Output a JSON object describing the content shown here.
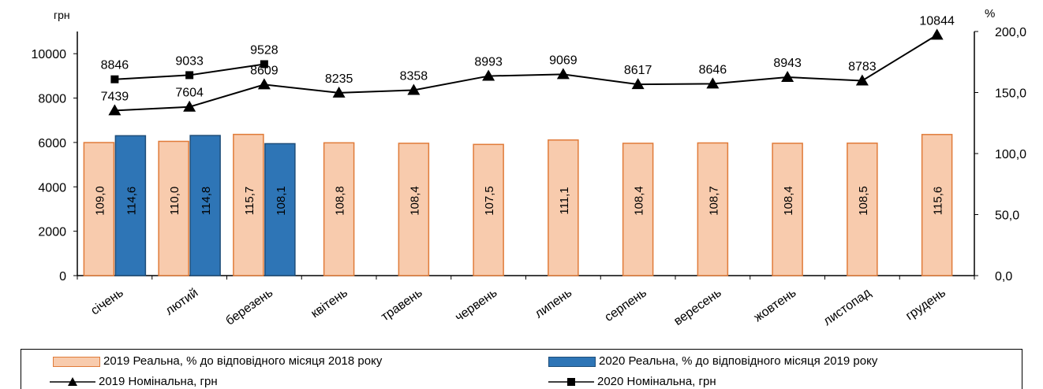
{
  "chart_data": {
    "type": "bar",
    "left_axis_unit": "грн",
    "right_axis_unit": "%",
    "categories": [
      "січень",
      "лютий",
      "березень",
      "квітень",
      "травень",
      "червень",
      "липень",
      "серпень",
      "вересень",
      "жовтень",
      "листопад",
      "грудень"
    ],
    "ylim_left": [
      0,
      11000
    ],
    "yticks_left": [
      0,
      2000,
      4000,
      6000,
      8000,
      10000
    ],
    "ylim_right": [
      0,
      200
    ],
    "yticks_right": [
      "0,0",
      "50,0",
      "100,0",
      "150,0",
      "200,0"
    ],
    "bars": [
      {
        "name": "2019 Реальна, % до відповідного місяця 2018 року",
        "color": "#f8cbad",
        "border": "#e07b39",
        "values": [
          109.0,
          110.0,
          115.7,
          108.8,
          108.4,
          107.5,
          111.1,
          108.4,
          108.7,
          108.4,
          108.5,
          115.6
        ],
        "labels": [
          "109,0",
          "110,0",
          "115,7",
          "108,8",
          "108,4",
          "107,5",
          "111,1",
          "108,4",
          "108,7",
          "108,4",
          "108,5",
          "115,6"
        ]
      },
      {
        "name": "2020 Реальна, % до відповідного місяця 2019 року",
        "color": "#2e75b6",
        "border": "#1f4e79",
        "values": [
          114.6,
          114.8,
          108.1,
          null,
          null,
          null,
          null,
          null,
          null,
          null,
          null,
          null
        ],
        "labels": [
          "114,6",
          "114,8",
          "108,1",
          "",
          "",
          "",
          "",
          "",
          "",
          "",
          "",
          ""
        ]
      }
    ],
    "lines": [
      {
        "name": "2019 Номінальна, грн",
        "marker": "triangle",
        "values": [
          7439,
          7604,
          8609,
          8235,
          8358,
          8993,
          9069,
          8617,
          8646,
          8943,
          8783,
          10844
        ]
      },
      {
        "name": "2020 Номінальна, грн",
        "marker": "square",
        "values": [
          8846,
          9033,
          9528,
          null,
          null,
          null,
          null,
          null,
          null,
          null,
          null,
          null
        ]
      }
    ]
  }
}
